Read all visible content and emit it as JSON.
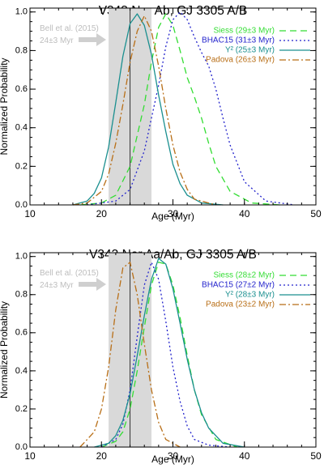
{
  "chart_data": [
    {
      "type": "line",
      "title": "V343 Nor Ab, GJ 3305 A/B",
      "xlabel": "Age (Myr)",
      "ylabel": "Normalized Probability",
      "xlim": [
        10,
        50
      ],
      "ylim": [
        0,
        1.02
      ],
      "x_ticks": [
        "10",
        "20",
        "30",
        "40",
        "50"
      ],
      "y_ticks": [
        "0.0",
        "0.2",
        "0.4",
        "0.6",
        "0.8",
        "1.0"
      ],
      "reference": {
        "label_line1": "Bell et al. (2015)",
        "label_line2": "24±3 Myr",
        "value": 24,
        "band": [
          21,
          27
        ]
      },
      "legend_position": "top-right",
      "series": [
        {
          "name": "Siess",
          "label": "(29±3 Myr)",
          "color": "#33dd33",
          "dash": "8,5",
          "x": [
            17,
            20,
            22,
            24,
            26,
            27,
            28,
            29,
            30,
            31,
            32,
            33,
            34,
            35,
            36,
            38,
            41,
            45
          ],
          "y": [
            0,
            0.01,
            0.05,
            0.2,
            0.52,
            0.74,
            0.92,
            0.99,
            0.93,
            0.8,
            0.66,
            0.56,
            0.45,
            0.32,
            0.2,
            0.07,
            0.01,
            0
          ]
        },
        {
          "name": "BHAC15",
          "label": "(31±3 Myr)",
          "color": "#2222cc",
          "dash": "2,3",
          "x": [
            18,
            22,
            24,
            26,
            28,
            29,
            30,
            31,
            32,
            33,
            34,
            35,
            36,
            37,
            38,
            40,
            43,
            47
          ],
          "y": [
            0,
            0.02,
            0.08,
            0.28,
            0.62,
            0.82,
            0.96,
            1.0,
            0.96,
            0.87,
            0.79,
            0.72,
            0.6,
            0.45,
            0.31,
            0.12,
            0.02,
            0
          ]
        },
        {
          "name": "Y²",
          "label": "(25±3 Myr)",
          "color": "#1a8f8f",
          "dash": "",
          "x": [
            16,
            18,
            19,
            20,
            21,
            22,
            23,
            24,
            25,
            26,
            27,
            28,
            29,
            30,
            31,
            32,
            34,
            37
          ],
          "y": [
            0,
            0.02,
            0.06,
            0.14,
            0.3,
            0.53,
            0.77,
            0.94,
            0.99,
            0.93,
            0.78,
            0.57,
            0.38,
            0.21,
            0.11,
            0.05,
            0.01,
            0
          ]
        },
        {
          "name": "Padova",
          "label": "(26±3 Myr)",
          "color": "#b86e16",
          "dash": "8,3,2,3",
          "x": [
            16,
            18,
            20,
            21,
            22,
            23,
            24,
            25,
            26,
            27,
            28,
            29,
            30,
            31,
            32,
            33,
            36
          ],
          "y": [
            0,
            0.01,
            0.07,
            0.16,
            0.32,
            0.52,
            0.74,
            0.9,
            0.98,
            0.9,
            0.72,
            0.5,
            0.31,
            0.17,
            0.08,
            0.03,
            0
          ]
        }
      ]
    },
    {
      "type": "line",
      "title": "V343 Nor Aa/Ab, GJ 3305 A/B",
      "xlabel": "Age (Myr)",
      "ylabel": "Normalized Probability",
      "xlim": [
        10,
        50
      ],
      "ylim": [
        0,
        1.02
      ],
      "x_ticks": [
        "10",
        "20",
        "30",
        "40",
        "50"
      ],
      "y_ticks": [
        "0.0",
        "0.2",
        "0.4",
        "0.6",
        "0.8",
        "1.0"
      ],
      "reference": {
        "label_line1": "Bell et al. (2015)",
        "label_line2": "24±3 Myr",
        "value": 24,
        "band": [
          21,
          27
        ]
      },
      "legend_position": "top-right",
      "series": [
        {
          "name": "Siess",
          "label": "(28±2 Myr)",
          "color": "#33dd33",
          "dash": "8,5",
          "x": [
            20,
            22,
            23,
            24,
            25,
            26,
            27,
            28,
            29,
            30,
            31,
            32,
            33,
            34,
            36,
            39
          ],
          "y": [
            0,
            0.03,
            0.08,
            0.2,
            0.4,
            0.63,
            0.85,
            0.97,
            0.96,
            0.85,
            0.68,
            0.48,
            0.3,
            0.17,
            0.04,
            0
          ]
        },
        {
          "name": "BHAC15",
          "label": "(27±2 Myr)",
          "color": "#2222cc",
          "dash": "2,3",
          "x": [
            20,
            22,
            23,
            24,
            25,
            26,
            27,
            28,
            29,
            30,
            31,
            32,
            33,
            35,
            38
          ],
          "y": [
            0,
            0.04,
            0.12,
            0.3,
            0.58,
            0.85,
            0.97,
            0.88,
            0.66,
            0.42,
            0.24,
            0.11,
            0.04,
            0.01,
            0
          ]
        },
        {
          "name": "Y²",
          "label": "(28±3 Myr)",
          "color": "#1a8f8f",
          "dash": "",
          "x": [
            19,
            21,
            22,
            23,
            24,
            25,
            26,
            27,
            28,
            29,
            30,
            31,
            32,
            33,
            34,
            35,
            37,
            40
          ],
          "y": [
            0,
            0.02,
            0.06,
            0.14,
            0.28,
            0.48,
            0.69,
            0.88,
            0.99,
            0.96,
            0.83,
            0.65,
            0.46,
            0.3,
            0.18,
            0.1,
            0.02,
            0
          ]
        },
        {
          "name": "Padova",
          "label": "(23±2 Myr)",
          "color": "#b86e16",
          "dash": "8,3,2,3",
          "x": [
            17,
            19,
            20,
            21,
            22,
            23,
            24,
            25,
            26,
            27,
            28,
            29,
            31
          ],
          "y": [
            0,
            0.08,
            0.2,
            0.42,
            0.72,
            0.94,
            0.97,
            0.8,
            0.54,
            0.3,
            0.13,
            0.04,
            0
          ]
        }
      ]
    }
  ]
}
